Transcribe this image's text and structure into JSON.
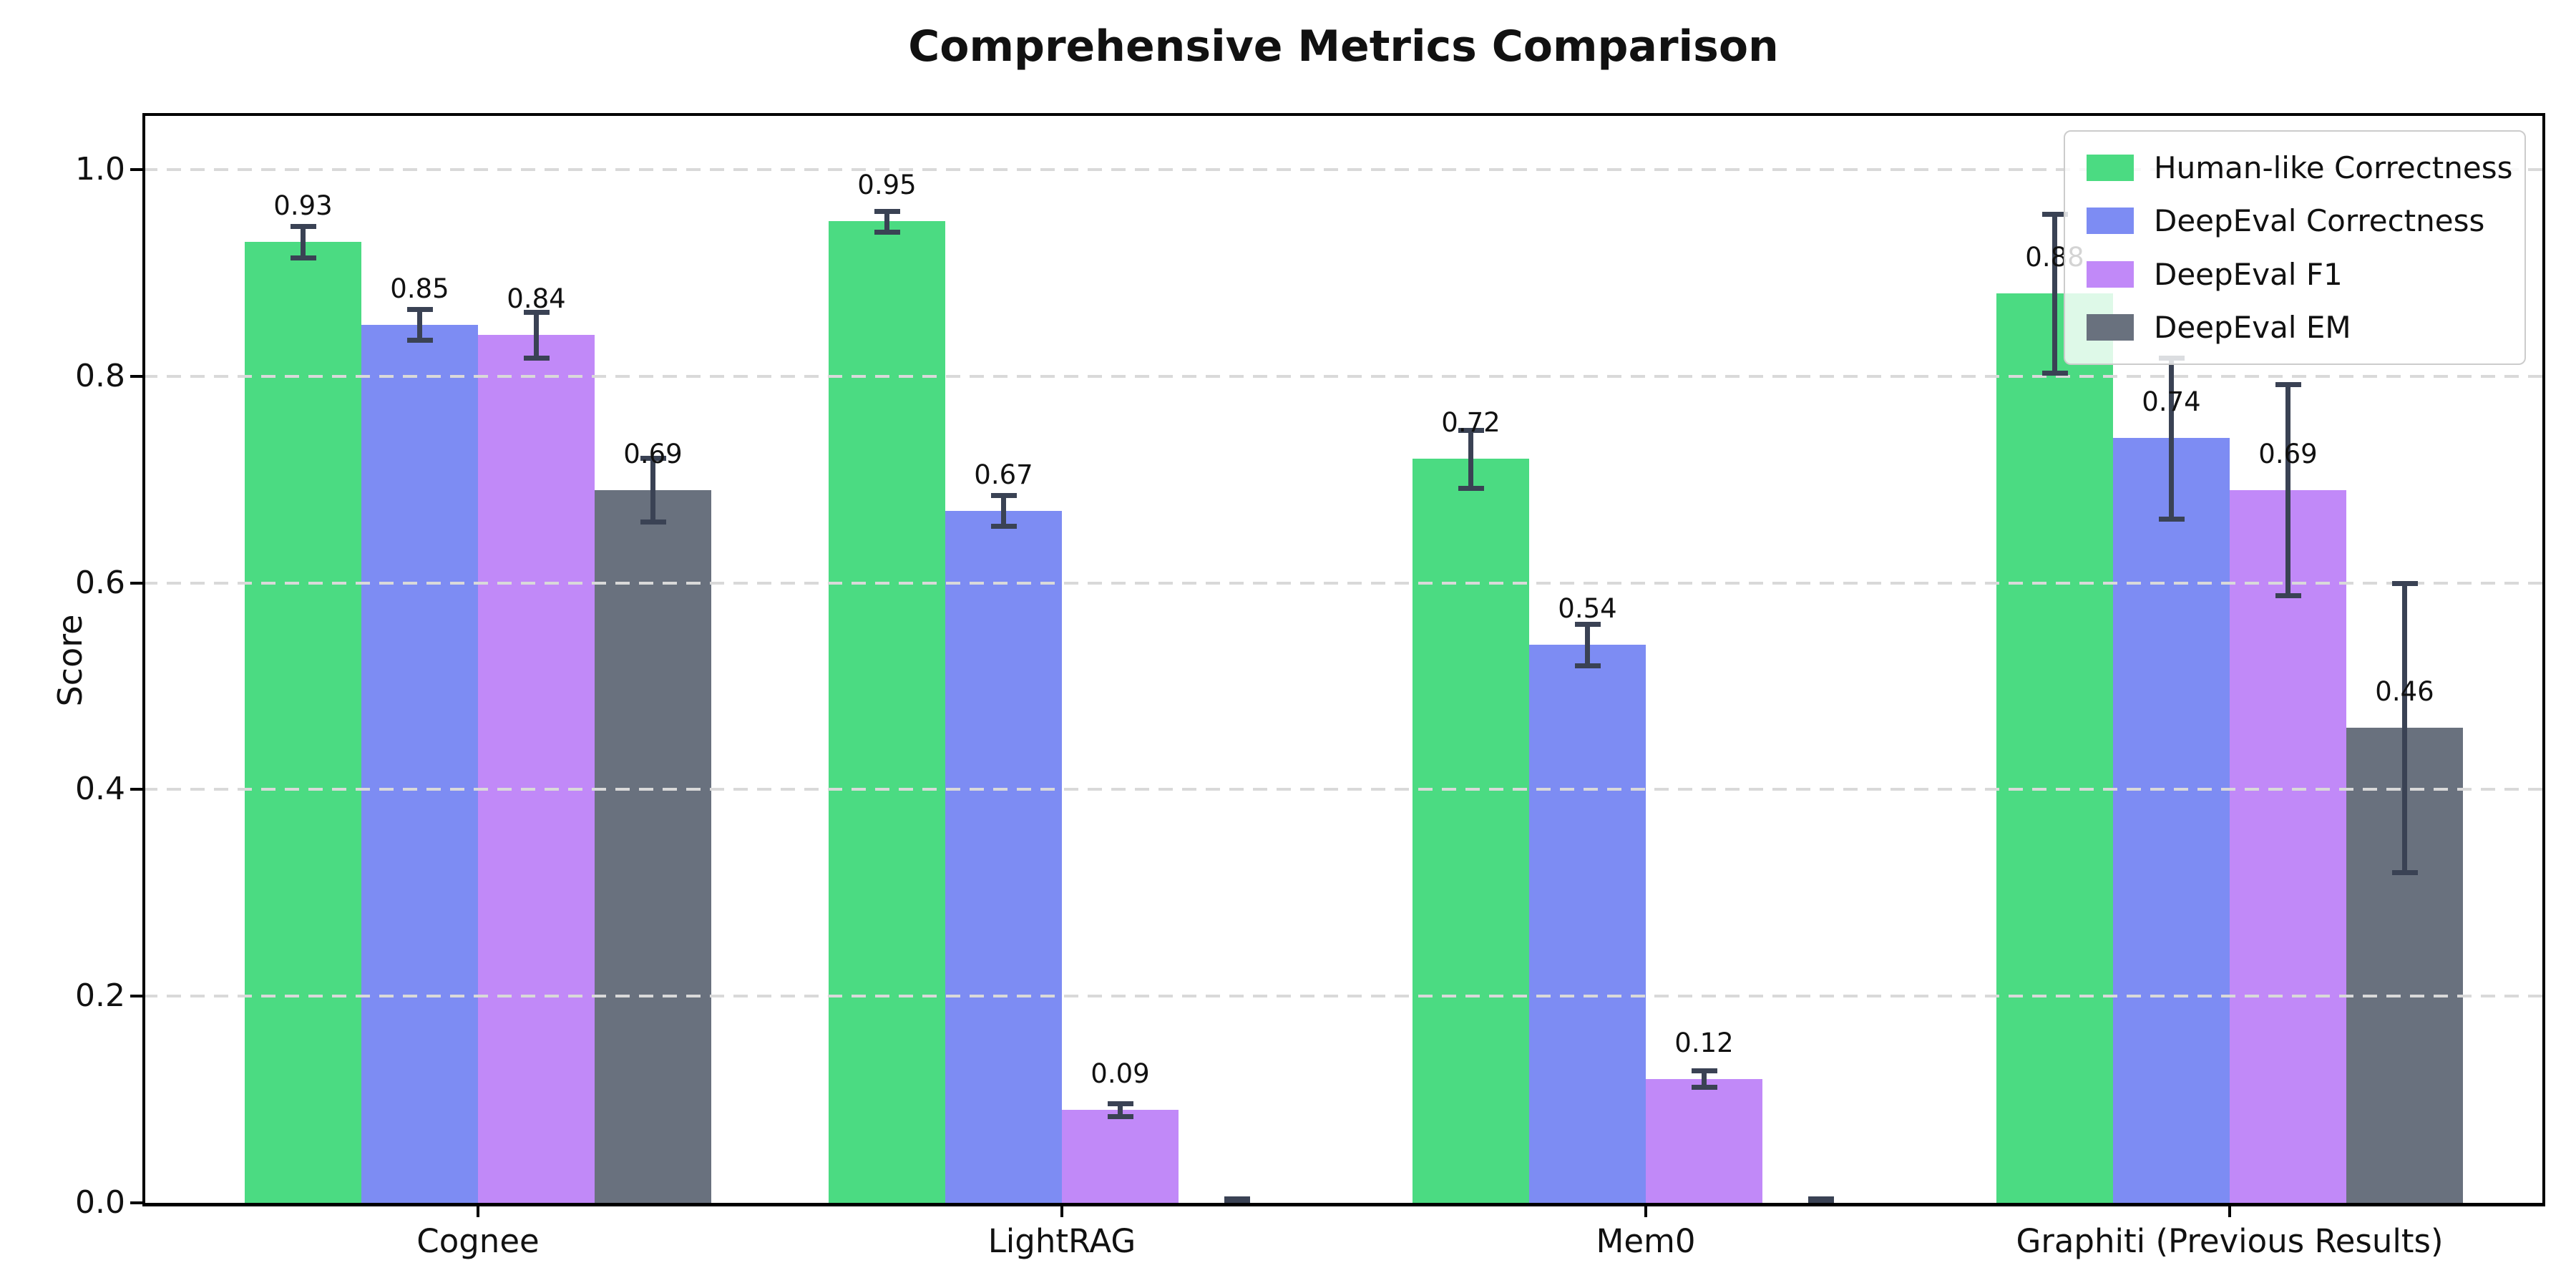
{
  "chart_data": {
    "type": "bar",
    "title": "Comprehensive Metrics Comparison",
    "xlabel": "",
    "ylabel": "Score",
    "categories": [
      "Cognee",
      "LightRAG",
      "Mem0",
      "Graphiti (Previous Results)"
    ],
    "series": [
      {
        "name": "Human-like Correctness",
        "color": "#4bdb82",
        "values": [
          0.93,
          0.95,
          0.72,
          0.88
        ],
        "errors": [
          0.015,
          0.01,
          0.028,
          0.077
        ],
        "labels": [
          "0.93",
          "0.95",
          "0.72",
          "0.88"
        ]
      },
      {
        "name": "DeepEval Correctness",
        "color": "#7d8cf3",
        "values": [
          0.85,
          0.67,
          0.54,
          0.74
        ],
        "errors": [
          0.015,
          0.015,
          0.02,
          0.078
        ],
        "labels": [
          "0.85",
          "0.67",
          "0.54",
          "0.74"
        ]
      },
      {
        "name": "DeepEval F1",
        "color": "#c189f8",
        "values": [
          0.84,
          0.09,
          0.12,
          0.69
        ],
        "errors": [
          0.022,
          0.006,
          0.008,
          0.102
        ],
        "labels": [
          "0.84",
          "0.09",
          "0.12",
          "0.69"
        ]
      },
      {
        "name": "DeepEval EM",
        "color": "#69717e",
        "values": [
          0.69,
          0.0,
          0.0,
          0.46
        ],
        "errors": [
          0.031,
          0.004,
          0.004,
          0.14
        ],
        "labels": [
          "0.69",
          null,
          null,
          "0.46"
        ]
      }
    ],
    "yticks": [
      0.0,
      0.2,
      0.4,
      0.6,
      0.8,
      1.0
    ],
    "ytick_labels": [
      "0.0",
      "0.2",
      "0.4",
      "0.6",
      "0.8",
      "1.0"
    ],
    "ylim": [
      0,
      1.055
    ],
    "grid": "horizontal-dashed",
    "legend_position": "upper right",
    "error_bar_color": "#3a4254"
  }
}
